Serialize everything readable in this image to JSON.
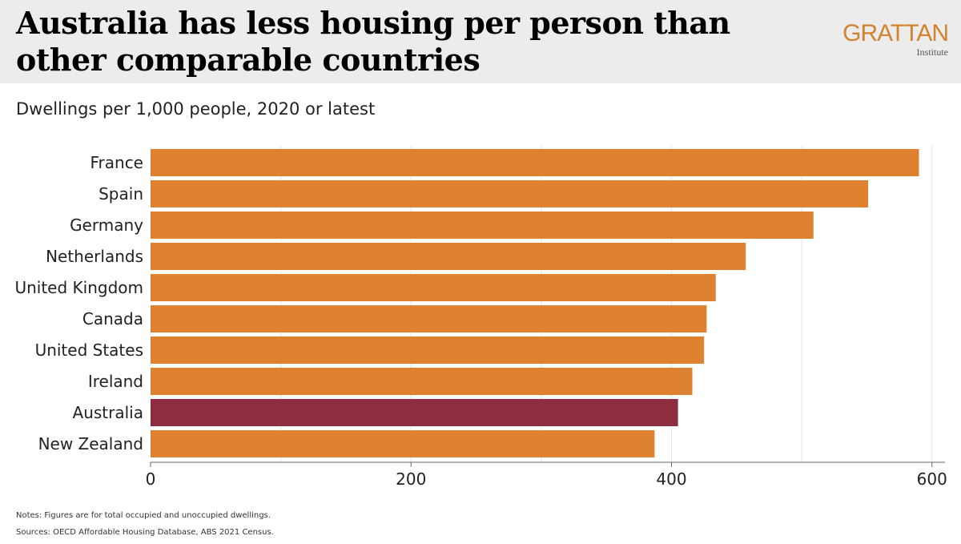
{
  "header": {
    "title": "Australia has less housing per person than other comparable countries",
    "logo_word": "GRATTAN",
    "logo_sub": "Institute"
  },
  "chart_data": {
    "type": "bar",
    "orientation": "horizontal",
    "subtitle": "Dwellings per 1,000 people, 2020 or latest",
    "categories": [
      "France",
      "Spain",
      "Germany",
      "Netherlands",
      "United Kingdom",
      "Canada",
      "United States",
      "Ireland",
      "Australia",
      "New Zealand"
    ],
    "values": [
      590,
      551,
      509,
      457,
      434,
      427,
      425,
      416,
      405,
      387
    ],
    "highlight": "Australia",
    "xlim": [
      0,
      610
    ],
    "x_ticks": [
      0,
      200,
      400,
      600
    ],
    "grid": "vertical, light",
    "colors": {
      "bar": "#de8131",
      "highlight": "#8e2c40",
      "grid": "#e4e4e4",
      "axis": "#666666"
    }
  },
  "footer": {
    "notes": "Notes: Figures are for total occupied and unoccupied dwellings.",
    "sources": "Sources: OECD Affordable Housing Database, ABS 2021 Census."
  }
}
